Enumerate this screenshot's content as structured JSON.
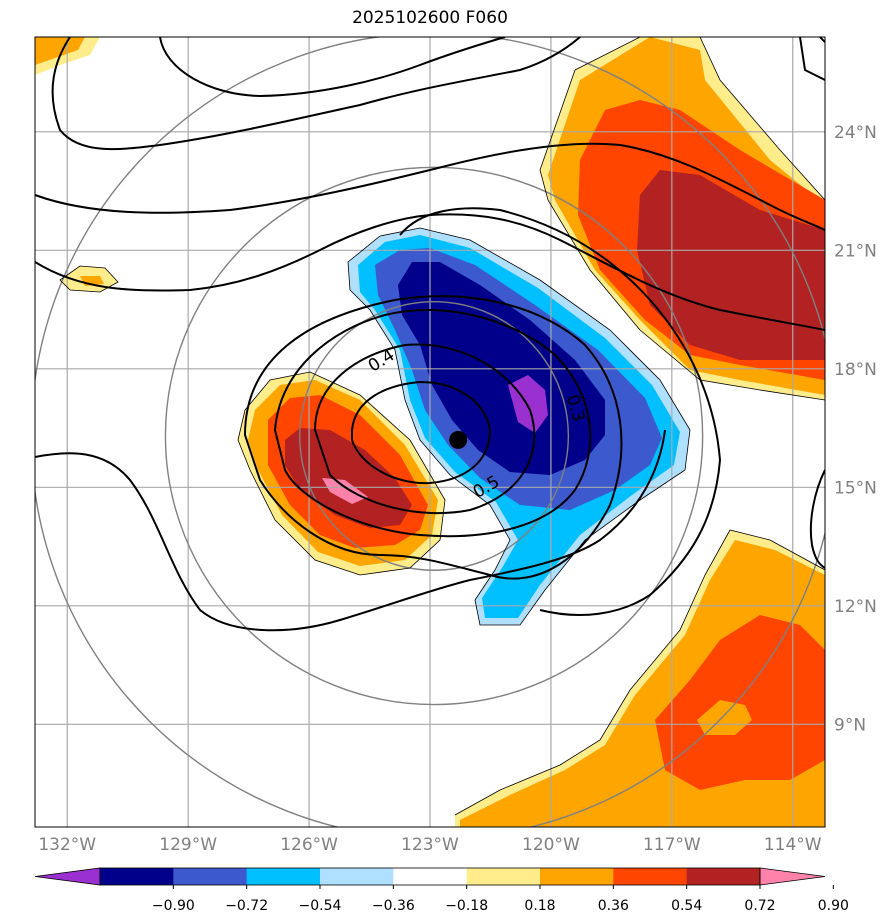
{
  "title": "2025102600 F060",
  "map": {
    "lon_range": [
      -132.8,
      -113.2
    ],
    "lat_range": [
      6.4,
      26.4
    ],
    "lon_ticks": [
      {
        "value": -132,
        "label": "132°W"
      },
      {
        "value": -129,
        "label": "129°W"
      },
      {
        "value": -126,
        "label": "126°W"
      },
      {
        "value": -123,
        "label": "123°W"
      },
      {
        "value": -120,
        "label": "120°W"
      },
      {
        "value": -117,
        "label": "117°W"
      },
      {
        "value": -114,
        "label": "114°W"
      }
    ],
    "lat_ticks": [
      {
        "value": 9,
        "label": "9°N"
      },
      {
        "value": 12,
        "label": "12°N"
      },
      {
        "value": 15,
        "label": "15°N"
      },
      {
        "value": 18,
        "label": "18°N"
      },
      {
        "value": 21,
        "label": "21°N"
      },
      {
        "value": 24,
        "label": "24°N"
      }
    ],
    "grid": true,
    "storm_center": {
      "lon": -122.3,
      "lat": 16.2
    },
    "contour_labels": [
      {
        "text": "0.4",
        "lon": -124.2,
        "lat": 18.2,
        "rotate": -32
      },
      {
        "text": "0.5",
        "lon": -121.6,
        "lat": 15.0,
        "rotate": -30
      },
      {
        "text": "0.3",
        "lon": -119.4,
        "lat": 17.0,
        "rotate": 75
      }
    ],
    "range_rings": {
      "center": {
        "lon": -122.9,
        "lat": 16.3
      },
      "radii_deg": [
        2.8,
        5.6,
        8.4
      ]
    }
  },
  "colorbar": {
    "boundaries": [
      "−0.90",
      "−0.72",
      "−0.54",
      "−0.36",
      "−0.18",
      "0.18",
      "0.36",
      "0.54",
      "0.72",
      "0.90"
    ],
    "colors": [
      "#9a30d0",
      "#00008b",
      "#3c5acd",
      "#00bfff",
      "#b0e0ff",
      "#ffffff",
      "#ffec8b",
      "#ffa500",
      "#ff4500",
      "#b22222",
      "#ff82ab"
    ],
    "extend": "both"
  }
}
